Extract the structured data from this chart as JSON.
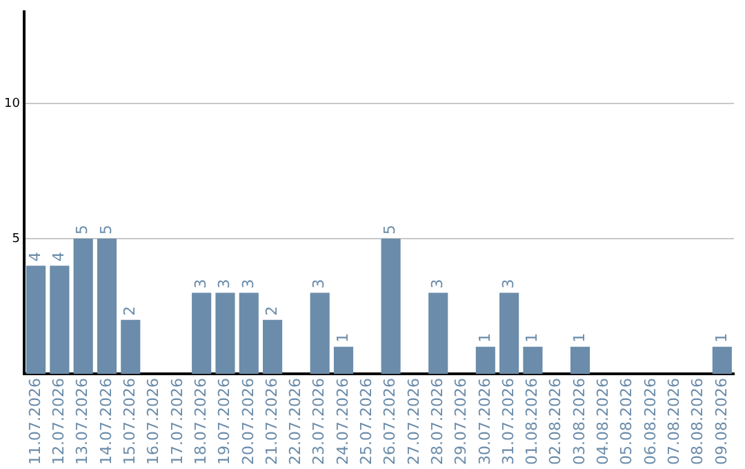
{
  "chart_data": {
    "type": "bar",
    "categories": [
      "11.07.2026",
      "12.07.2026",
      "13.07.2026",
      "14.07.2026",
      "15.07.2026",
      "16.07.2026",
      "17.07.2026",
      "18.07.2026",
      "19.07.2026",
      "20.07.2026",
      "21.07.2026",
      "22.07.2026",
      "23.07.2026",
      "24.07.2026",
      "25.07.2026",
      "26.07.2026",
      "27.07.2026",
      "28.07.2026",
      "29.07.2026",
      "30.07.2026",
      "31.07.2026",
      "01.08.2026",
      "02.08.2026",
      "03.08.2026",
      "04.08.2026",
      "05.08.2026",
      "06.08.2026",
      "07.08.2026",
      "08.08.2026",
      "09.08.2026"
    ],
    "values": [
      4,
      4,
      5,
      5,
      2,
      0,
      0,
      3,
      3,
      3,
      2,
      0,
      3,
      1,
      0,
      5,
      0,
      3,
      0,
      1,
      3,
      1,
      0,
      1,
      0,
      0,
      0,
      0,
      0,
      1
    ],
    "value_labels": [
      "4",
      "4",
      "5",
      "5",
      "2",
      null,
      null,
      "3",
      "3",
      "3",
      "2",
      null,
      "3",
      "1",
      null,
      "5",
      null,
      "3",
      null,
      "1",
      "3",
      "1",
      null,
      "1",
      null,
      null,
      null,
      null,
      null,
      "1"
    ],
    "color": "#6b8caa",
    "ylim": [
      0,
      13.4
    ],
    "yticks": [
      5,
      10
    ],
    "grid": "y",
    "legend": false
  }
}
